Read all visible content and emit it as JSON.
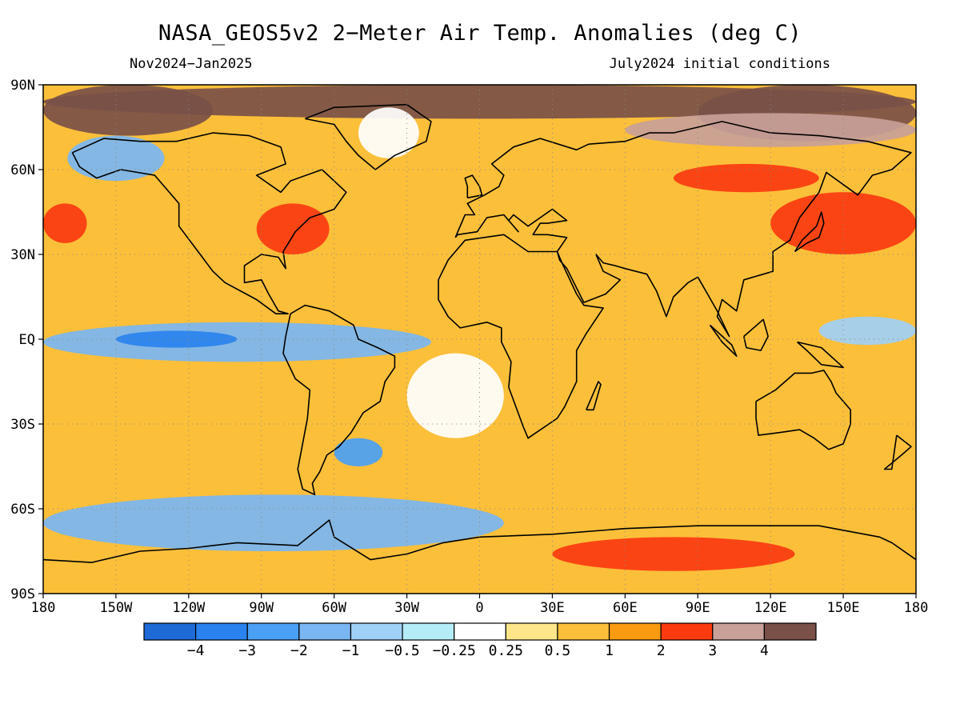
{
  "title": "NASA_GEOS5v2 2−Meter Air Temp. Anomalies (deg C)",
  "period": "Nov2024−Jan2025",
  "init_conditions": "July2024 initial conditions",
  "map": {
    "lon_range": [
      -180,
      180
    ],
    "lat_range": [
      -90,
      90
    ],
    "lon_ticks": [
      {
        "value": -180,
        "label": "180"
      },
      {
        "value": -150,
        "label": "150W"
      },
      {
        "value": -120,
        "label": "120W"
      },
      {
        "value": -90,
        "label": "90W"
      },
      {
        "value": -60,
        "label": "60W"
      },
      {
        "value": -30,
        "label": "30W"
      },
      {
        "value": 0,
        "label": "0"
      },
      {
        "value": 30,
        "label": "30E"
      },
      {
        "value": 60,
        "label": "60E"
      },
      {
        "value": 90,
        "label": "90E"
      },
      {
        "value": 120,
        "label": "120E"
      },
      {
        "value": 150,
        "label": "150E"
      },
      {
        "value": 180,
        "label": "180"
      }
    ],
    "lat_ticks": [
      {
        "value": 90,
        "label": "90N"
      },
      {
        "value": 60,
        "label": "60N"
      },
      {
        "value": 30,
        "label": "30N"
      },
      {
        "value": 0,
        "label": "EQ"
      },
      {
        "value": -30,
        "label": "30S"
      },
      {
        "value": -60,
        "label": "60S"
      },
      {
        "value": -90,
        "label": "90S"
      }
    ],
    "grid_lines": true
  },
  "colorbar": {
    "colors": [
      "#1e6ad6",
      "#2a82ee",
      "#4aa0f5",
      "#7ab6f2",
      "#9fd0f6",
      "#b4ecf7",
      "#ffffff",
      "#fde68a",
      "#fbbf3a",
      "#f99b10",
      "#fb3a10",
      "#c8a098",
      "#7a5048"
    ],
    "labels": [
      "−4",
      "−3",
      "−2",
      "−1",
      "−0.5",
      "−0.25",
      "0.25",
      "0.5",
      "1",
      "2",
      "3",
      "4"
    ]
  },
  "regions": [
    {
      "name": "arctic-warm-cap",
      "level": 12,
      "lon": -180,
      "lat": 90,
      "w": 360,
      "h": 12
    },
    {
      "name": "arctic-west-strong",
      "level": 12,
      "lon": -180,
      "lat": 90,
      "w": 70,
      "h": 18
    },
    {
      "name": "arctic-east-strong",
      "level": 12,
      "lon": 90,
      "lat": 90,
      "w": 90,
      "h": 20
    },
    {
      "name": "siberia-warm",
      "level": 11,
      "lon": 60,
      "lat": 80,
      "w": 120,
      "h": 12
    },
    {
      "name": "north-pacific-west-hot",
      "level": 10,
      "lon": -180,
      "lat": 48,
      "w": 18,
      "h": 14
    },
    {
      "name": "eastern-us-hot",
      "level": 10,
      "lon": -92,
      "lat": 48,
      "w": 30,
      "h": 18
    },
    {
      "name": "north-asia-hot",
      "level": 10,
      "lon": 80,
      "lat": 62,
      "w": 60,
      "h": 10
    },
    {
      "name": "japan-hot",
      "level": 10,
      "lon": 120,
      "lat": 52,
      "w": 60,
      "h": 22
    },
    {
      "name": "antarctica-hot",
      "level": 10,
      "lon": 30,
      "lat": -70,
      "w": 100,
      "h": 12
    },
    {
      "name": "pacific-cool-band",
      "level": 3,
      "lon": -180,
      "lat": 6,
      "w": 160,
      "h": 14
    },
    {
      "name": "pacific-cool-core",
      "level": 1,
      "lon": -150,
      "lat": 3,
      "w": 50,
      "h": 6
    },
    {
      "name": "alaska-cool",
      "level": 3,
      "lon": -170,
      "lat": 72,
      "w": 40,
      "h": 16
    },
    {
      "name": "southern-ocean-cool",
      "level": 3,
      "lon": -180,
      "lat": -55,
      "w": 190,
      "h": 20
    },
    {
      "name": "south-atlantic-cool",
      "level": 2,
      "lon": -60,
      "lat": -35,
      "w": 20,
      "h": 10
    },
    {
      "name": "west-pacific-cool",
      "level": 4,
      "lon": 140,
      "lat": 8,
      "w": 40,
      "h": 10
    },
    {
      "name": "atlantic-neutral",
      "level": 6,
      "lon": -30,
      "lat": -5,
      "w": 40,
      "h": 30
    },
    {
      "name": "greenland-neutral",
      "level": 6,
      "lon": -50,
      "lat": 82,
      "w": 25,
      "h": 18
    }
  ],
  "coastlines": [
    {
      "name": "north-america",
      "points": [
        [
          -168,
          66
        ],
        [
          -155,
          71
        ],
        [
          -140,
          70
        ],
        [
          -125,
          70
        ],
        [
          -110,
          73
        ],
        [
          -95,
          72
        ],
        [
          -82,
          68
        ],
        [
          -80,
          62
        ],
        [
          -92,
          58
        ],
        [
          -82,
          52
        ],
        [
          -78,
          56
        ],
        [
          -65,
          60
        ],
        [
          -55,
          52
        ],
        [
          -60,
          46
        ],
        [
          -70,
          43
        ],
        [
          -76,
          38
        ],
        [
          -81,
          31
        ],
        [
          -80,
          25
        ],
        [
          -83,
          29
        ],
        [
          -90,
          30
        ],
        [
          -97,
          26
        ],
        [
          -97,
          20
        ],
        [
          -90,
          21
        ],
        [
          -87,
          16
        ],
        [
          -83,
          10
        ],
        [
          -79,
          9
        ],
        [
          -84,
          9
        ],
        [
          -92,
          14
        ],
        [
          -105,
          20
        ],
        [
          -110,
          24
        ],
        [
          -117,
          32
        ],
        [
          -124,
          40
        ],
        [
          -124,
          48
        ],
        [
          -134,
          58
        ],
        [
          -148,
          60
        ],
        [
          -158,
          57
        ],
        [
          -165,
          61
        ],
        [
          -168,
          66
        ]
      ]
    },
    {
      "name": "greenland",
      "points": [
        [
          -72,
          78
        ],
        [
          -60,
          82
        ],
        [
          -30,
          83
        ],
        [
          -20,
          77
        ],
        [
          -22,
          70
        ],
        [
          -35,
          65
        ],
        [
          -43,
          60
        ],
        [
          -50,
          65
        ],
        [
          -55,
          70
        ],
        [
          -60,
          76
        ],
        [
          -72,
          78
        ]
      ]
    },
    {
      "name": "south-america",
      "points": [
        [
          -78,
          9
        ],
        [
          -72,
          12
        ],
        [
          -62,
          10
        ],
        [
          -52,
          5
        ],
        [
          -50,
          0
        ],
        [
          -42,
          -3
        ],
        [
          -35,
          -6
        ],
        [
          -35,
          -10
        ],
        [
          -39,
          -15
        ],
        [
          -41,
          -22
        ],
        [
          -48,
          -26
        ],
        [
          -53,
          -33
        ],
        [
          -58,
          -38
        ],
        [
          -63,
          -41
        ],
        [
          -66,
          -47
        ],
        [
          -69,
          -51
        ],
        [
          -68,
          -55
        ],
        [
          -73,
          -53
        ],
        [
          -75,
          -46
        ],
        [
          -73,
          -37
        ],
        [
          -71,
          -28
        ],
        [
          -70,
          -18
        ],
        [
          -76,
          -14
        ],
        [
          -81,
          -5
        ],
        [
          -80,
          1
        ],
        [
          -78,
          9
        ]
      ]
    },
    {
      "name": "eurasia-africa",
      "points": [
        [
          -10,
          36
        ],
        [
          -6,
          44
        ],
        [
          -2,
          44
        ],
        [
          -5,
          48
        ],
        [
          2,
          51
        ],
        [
          8,
          54
        ],
        [
          10,
          58
        ],
        [
          5,
          62
        ],
        [
          14,
          68
        ],
        [
          25,
          71
        ],
        [
          40,
          67
        ],
        [
          45,
          69
        ],
        [
          60,
          70
        ],
        [
          70,
          73
        ],
        [
          80,
          73
        ],
        [
          100,
          77
        ],
        [
          120,
          73
        ],
        [
          140,
          72
        ],
        [
          160,
          70
        ],
        [
          178,
          66
        ],
        [
          170,
          60
        ],
        [
          162,
          58
        ],
        [
          156,
          51
        ],
        [
          143,
          59
        ],
        [
          140,
          52
        ],
        [
          132,
          43
        ],
        [
          128,
          35
        ],
        [
          121,
          31
        ],
        [
          121,
          24
        ],
        [
          109,
          21
        ],
        [
          106,
          10
        ],
        [
          100,
          14
        ],
        [
          98,
          8
        ],
        [
          103,
          1
        ],
        [
          98,
          10
        ],
        [
          94,
          16
        ],
        [
          90,
          22
        ],
        [
          86,
          20
        ],
        [
          80,
          15
        ],
        [
          77,
          8
        ],
        [
          73,
          17
        ],
        [
          69,
          23
        ],
        [
          60,
          25
        ],
        [
          56,
          26
        ],
        [
          51,
          27
        ],
        [
          48,
          30
        ],
        [
          51,
          24
        ],
        [
          58,
          21
        ],
        [
          52,
          16
        ],
        [
          43,
          13
        ],
        [
          36,
          25
        ],
        [
          33,
          28
        ],
        [
          32,
          31
        ],
        [
          36,
          36
        ],
        [
          28,
          37
        ],
        [
          22,
          37
        ],
        [
          25,
          41
        ],
        [
          28,
          41
        ],
        [
          36,
          42
        ],
        [
          30,
          46
        ],
        [
          20,
          40
        ],
        [
          14,
          44
        ],
        [
          12,
          42
        ],
        [
          16,
          38
        ],
        [
          10,
          44
        ],
        [
          3,
          43
        ],
        [
          -1,
          38
        ],
        [
          -9,
          37
        ],
        [
          -10,
          36
        ]
      ]
    },
    {
      "name": "africa",
      "points": [
        [
          -17,
          21
        ],
        [
          -13,
          28
        ],
        [
          -6,
          35
        ],
        [
          10,
          37
        ],
        [
          20,
          31
        ],
        [
          32,
          31
        ],
        [
          34,
          27
        ],
        [
          40,
          16
        ],
        [
          43,
          12
        ],
        [
          51,
          11
        ],
        [
          44,
          2
        ],
        [
          40,
          -4
        ],
        [
          40,
          -15
        ],
        [
          35,
          -24
        ],
        [
          32,
          -28
        ],
        [
          20,
          -35
        ],
        [
          18,
          -31
        ],
        [
          12,
          -17
        ],
        [
          13,
          -8
        ],
        [
          9,
          -1
        ],
        [
          9,
          4
        ],
        [
          3,
          6
        ],
        [
          -8,
          4
        ],
        [
          -13,
          8
        ],
        [
          -17,
          14
        ],
        [
          -17,
          21
        ]
      ]
    },
    {
      "name": "australia",
      "points": [
        [
          114,
          -22
        ],
        [
          122,
          -18
        ],
        [
          130,
          -12
        ],
        [
          137,
          -12
        ],
        [
          142,
          -11
        ],
        [
          145,
          -15
        ],
        [
          147,
          -19
        ],
        [
          153,
          -25
        ],
        [
          153,
          -30
        ],
        [
          150,
          -37
        ],
        [
          144,
          -39
        ],
        [
          138,
          -35
        ],
        [
          132,
          -32
        ],
        [
          124,
          -33
        ],
        [
          115,
          -34
        ],
        [
          114,
          -28
        ],
        [
          114,
          -22
        ]
      ]
    },
    {
      "name": "antarctica",
      "points": [
        [
          -180,
          -78
        ],
        [
          -160,
          -79
        ],
        [
          -140,
          -75
        ],
        [
          -120,
          -74
        ],
        [
          -100,
          -72
        ],
        [
          -75,
          -73
        ],
        [
          -62,
          -64
        ],
        [
          -60,
          -70
        ],
        [
          -45,
          -78
        ],
        [
          -30,
          -76
        ],
        [
          -15,
          -72
        ],
        [
          0,
          -70
        ],
        [
          30,
          -69
        ],
        [
          60,
          -67
        ],
        [
          90,
          -66
        ],
        [
          120,
          -66
        ],
        [
          140,
          -66
        ],
        [
          165,
          -70
        ],
        [
          170,
          -72
        ],
        [
          180,
          -78
        ]
      ]
    },
    {
      "name": "great-britain",
      "points": [
        [
          -5,
          50
        ],
        [
          1,
          51
        ],
        [
          0,
          54
        ],
        [
          -3,
          58
        ],
        [
          -6,
          57
        ],
        [
          -5,
          54
        ],
        [
          -5,
          50
        ]
      ]
    },
    {
      "name": "madagascar",
      "points": [
        [
          44,
          -25
        ],
        [
          49,
          -15
        ],
        [
          50,
          -16
        ],
        [
          47,
          -25
        ],
        [
          44,
          -25
        ]
      ]
    },
    {
      "name": "japan",
      "points": [
        [
          130,
          31
        ],
        [
          135,
          34
        ],
        [
          140,
          36
        ],
        [
          142,
          41
        ],
        [
          141,
          45
        ],
        [
          139,
          40
        ],
        [
          133,
          35
        ],
        [
          130,
          31
        ]
      ]
    },
    {
      "name": "new-zealand",
      "points": [
        [
          172,
          -34
        ],
        [
          178,
          -38
        ],
        [
          174,
          -41
        ],
        [
          167,
          -46
        ],
        [
          170,
          -46
        ],
        [
          172,
          -34
        ]
      ]
    },
    {
      "name": "borneo",
      "points": [
        [
          109,
          1
        ],
        [
          117,
          7
        ],
        [
          119,
          1
        ],
        [
          116,
          -4
        ],
        [
          110,
          -3
        ],
        [
          109,
          1
        ]
      ]
    },
    {
      "name": "sumatra",
      "points": [
        [
          95,
          5
        ],
        [
          104,
          -2
        ],
        [
          106,
          -6
        ],
        [
          100,
          -1
        ],
        [
          95,
          5
        ]
      ]
    },
    {
      "name": "new-guinea",
      "points": [
        [
          131,
          -1
        ],
        [
          141,
          -3
        ],
        [
          150,
          -10
        ],
        [
          141,
          -9
        ],
        [
          135,
          -4
        ],
        [
          131,
          -1
        ]
      ]
    }
  ]
}
